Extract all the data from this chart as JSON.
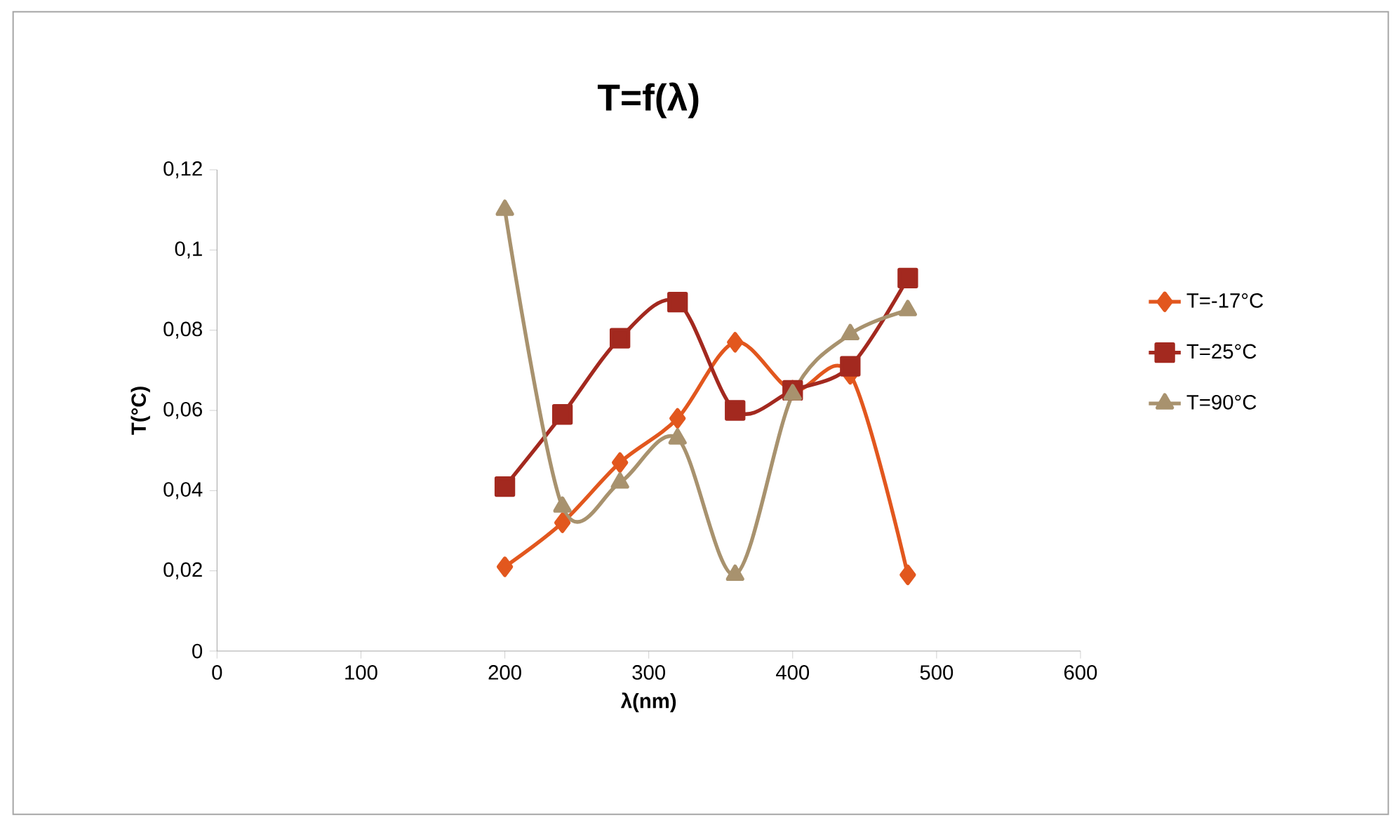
{
  "chart_data": {
    "type": "line",
    "title": "T=f(λ)",
    "xlabel": "λ(nm)",
    "ylabel": "T(°C)",
    "x": [
      200,
      240,
      280,
      320,
      360,
      400,
      440,
      480
    ],
    "series": [
      {
        "name": "T=-17°C",
        "color": "#e2571e",
        "marker": "diamond",
        "values": [
          0.021,
          0.032,
          0.047,
          0.058,
          0.077,
          0.065,
          0.069,
          0.019
        ]
      },
      {
        "name": "T=25°C",
        "color": "#a3291f",
        "marker": "square",
        "values": [
          0.041,
          0.059,
          0.078,
          0.087,
          0.06,
          0.065,
          0.071,
          0.093
        ]
      },
      {
        "name": "T=90°C",
        "color": "#a8926e",
        "marker": "triangle",
        "values": [
          0.11,
          0.036,
          0.042,
          0.053,
          0.019,
          0.064,
          0.079,
          0.085
        ]
      }
    ],
    "xlim": [
      0,
      600
    ],
    "xticks": [
      0,
      100,
      200,
      300,
      400,
      500,
      600
    ],
    "ylim": [
      0,
      0.12
    ],
    "yticks": [
      {
        "value": 0,
        "label": "0"
      },
      {
        "value": 0.02,
        "label": "0,02"
      },
      {
        "value": 0.04,
        "label": "0,04"
      },
      {
        "value": 0.06,
        "label": "0,06"
      },
      {
        "value": 0.08,
        "label": "0,08"
      },
      {
        "value": 0.1,
        "label": "0,1"
      },
      {
        "value": 0.12,
        "label": "0,12"
      }
    ],
    "grid": false,
    "legend": "right"
  }
}
